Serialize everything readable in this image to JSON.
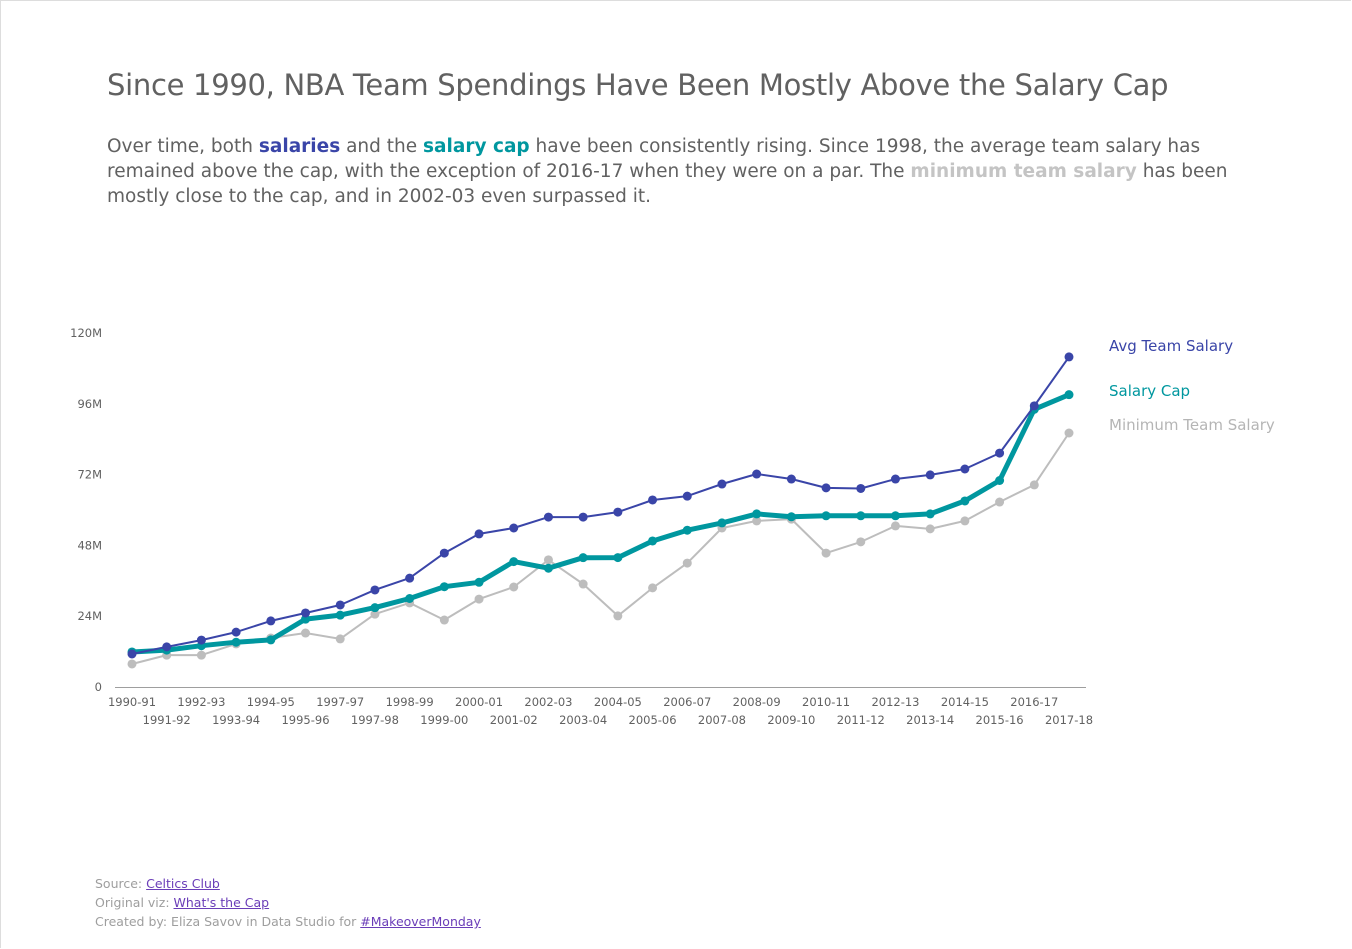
{
  "title": "Since 1990, NBA Team Spendings Have Been Mostly Above the Salary Cap",
  "subtitle": {
    "p1": "Over time, both ",
    "s1": "salaries",
    "p2": " and the ",
    "s2": "salary cap",
    "p3": " have been consistently rising. Since 1998, the average team salary has remained above the cap, with the exception of 2016-17 when they were on a par. The ",
    "s3": "minimum team salary",
    "p4": " has been mostly close to the cap, and in 2002-03 even surpassed it."
  },
  "colors": {
    "avg": "#3a45a8",
    "cap": "#00979f",
    "min": "#bdbdbd",
    "text": "#616161",
    "link": "#6a3db8"
  },
  "chart_data": {
    "type": "line",
    "title": "",
    "xlabel": "",
    "ylabel": "",
    "ylim": [
      0,
      120
    ],
    "y_ticks": [
      "0",
      "24M",
      "48M",
      "72M",
      "96M",
      "120M"
    ],
    "y_tick_values": [
      0,
      24,
      48,
      72,
      96,
      120
    ],
    "grid": false,
    "legend_placement": "right",
    "categories": [
      "1990-91",
      "1991-92",
      "1992-93",
      "1993-94",
      "1994-95",
      "1995-96",
      "1997-97",
      "1997-98",
      "1998-99",
      "1999-00",
      "2000-01",
      "2001-02",
      "2002-03",
      "2003-04",
      "2004-05",
      "2005-06",
      "2006-07",
      "2007-08",
      "2008-09",
      "2009-10",
      "2010-11",
      "2011-12",
      "2012-13",
      "2013-14",
      "2014-15",
      "2015-16",
      "2016-17",
      "2017-18"
    ],
    "series": [
      {
        "name": "Avg Team Salary",
        "key": "avg",
        "values": [
          11.2,
          13.6,
          15.9,
          18.6,
          22.4,
          25.1,
          27.8,
          32.9,
          36.9,
          45.4,
          51.9,
          53.9,
          57.6,
          57.6,
          59.3,
          63.4,
          64.7,
          68.8,
          72.2,
          70.5,
          67.5,
          67.3,
          70.5,
          71.9,
          73.9,
          79.3,
          95.3,
          111.9
        ]
      },
      {
        "name": "Salary Cap",
        "key": "cap",
        "values": [
          11.87,
          12.5,
          14.0,
          15.18,
          15.96,
          23.0,
          24.36,
          26.9,
          30.0,
          34.0,
          35.5,
          42.5,
          40.27,
          43.84,
          43.87,
          49.5,
          53.14,
          55.63,
          58.68,
          57.7,
          58.04,
          58.04,
          58.04,
          58.68,
          63.07,
          70.0,
          94.14,
          99.09
        ]
      },
      {
        "name": "Minimum Team Salary",
        "key": "min",
        "values": [
          7.8,
          10.8,
          10.8,
          14.6,
          16.6,
          18.3,
          16.3,
          24.7,
          28.5,
          22.7,
          29.8,
          33.9,
          43.1,
          34.9,
          24.1,
          33.6,
          42.0,
          53.9,
          56.3,
          56.9,
          45.4,
          49.2,
          54.6,
          53.6,
          56.3,
          62.7,
          68.5,
          86.1
        ]
      }
    ]
  },
  "footer": {
    "source_label": "Source: ",
    "source_link": "Celtics Club",
    "orig_label": "Original viz: ",
    "orig_link": "What's the Cap",
    "created_label": "Created by: Eliza Savov in Data Studio for ",
    "created_link": "#MakeoverMonday"
  }
}
